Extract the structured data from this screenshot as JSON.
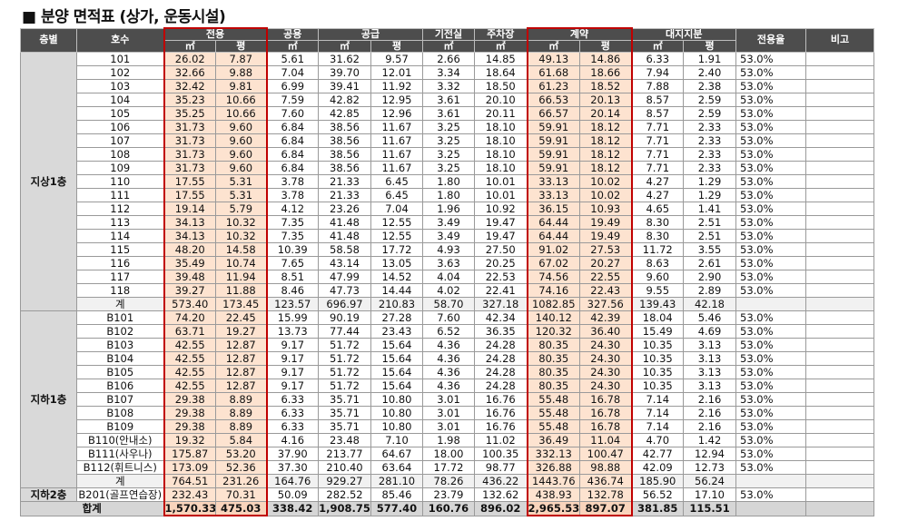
{
  "title": "■ 분양 면적표 (상가, 운동시설)",
  "table": {
    "head1": [
      "층별",
      "호수",
      "전용",
      "공용",
      "공급",
      "기전실",
      "주차장",
      "계약",
      "대지지분",
      "전용율",
      "비고"
    ],
    "head2": [
      "㎡",
      "평",
      "㎡",
      "㎡",
      "평",
      "㎡",
      "㎡",
      "㎡",
      "평",
      "㎡",
      "평"
    ],
    "sections": [
      {
        "floor": "지상1층",
        "rows": [
          [
            "101",
            "26.02",
            "7.87",
            "5.61",
            "31.62",
            "9.57",
            "2.66",
            "14.85",
            "49.13",
            "14.86",
            "6.33",
            "1.91",
            "53.0%"
          ],
          [
            "102",
            "32.66",
            "9.88",
            "7.04",
            "39.70",
            "12.01",
            "3.34",
            "18.64",
            "61.68",
            "18.66",
            "7.94",
            "2.40",
            "53.0%"
          ],
          [
            "103",
            "32.42",
            "9.81",
            "6.99",
            "39.41",
            "11.92",
            "3.32",
            "18.50",
            "61.23",
            "18.52",
            "7.88",
            "2.38",
            "53.0%"
          ],
          [
            "104",
            "35.23",
            "10.66",
            "7.59",
            "42.82",
            "12.95",
            "3.61",
            "20.10",
            "66.53",
            "20.13",
            "8.57",
            "2.59",
            "53.0%"
          ],
          [
            "105",
            "35.25",
            "10.66",
            "7.60",
            "42.85",
            "12.96",
            "3.61",
            "20.11",
            "66.57",
            "20.14",
            "8.57",
            "2.59",
            "53.0%"
          ],
          [
            "106",
            "31.73",
            "9.60",
            "6.84",
            "38.56",
            "11.67",
            "3.25",
            "18.10",
            "59.91",
            "18.12",
            "7.71",
            "2.33",
            "53.0%"
          ],
          [
            "107",
            "31.73",
            "9.60",
            "6.84",
            "38.56",
            "11.67",
            "3.25",
            "18.10",
            "59.91",
            "18.12",
            "7.71",
            "2.33",
            "53.0%"
          ],
          [
            "108",
            "31.73",
            "9.60",
            "6.84",
            "38.56",
            "11.67",
            "3.25",
            "18.10",
            "59.91",
            "18.12",
            "7.71",
            "2.33",
            "53.0%"
          ],
          [
            "109",
            "31.73",
            "9.60",
            "6.84",
            "38.56",
            "11.67",
            "3.25",
            "18.10",
            "59.91",
            "18.12",
            "7.71",
            "2.33",
            "53.0%"
          ],
          [
            "110",
            "17.55",
            "5.31",
            "3.78",
            "21.33",
            "6.45",
            "1.80",
            "10.01",
            "33.13",
            "10.02",
            "4.27",
            "1.29",
            "53.0%"
          ],
          [
            "111",
            "17.55",
            "5.31",
            "3.78",
            "21.33",
            "6.45",
            "1.80",
            "10.01",
            "33.13",
            "10.02",
            "4.27",
            "1.29",
            "53.0%"
          ],
          [
            "112",
            "19.14",
            "5.79",
            "4.12",
            "23.26",
            "7.04",
            "1.96",
            "10.92",
            "36.15",
            "10.93",
            "4.65",
            "1.41",
            "53.0%"
          ],
          [
            "113",
            "34.13",
            "10.32",
            "7.35",
            "41.48",
            "12.55",
            "3.49",
            "19.47",
            "64.44",
            "19.49",
            "8.30",
            "2.51",
            "53.0%"
          ],
          [
            "114",
            "34.13",
            "10.32",
            "7.35",
            "41.48",
            "12.55",
            "3.49",
            "19.47",
            "64.44",
            "19.49",
            "8.30",
            "2.51",
            "53.0%"
          ],
          [
            "115",
            "48.20",
            "14.58",
            "10.39",
            "58.58",
            "17.72",
            "4.93",
            "27.50",
            "91.02",
            "27.53",
            "11.72",
            "3.55",
            "53.0%"
          ],
          [
            "116",
            "35.49",
            "10.74",
            "7.65",
            "43.14",
            "13.05",
            "3.63",
            "20.25",
            "67.02",
            "20.27",
            "8.63",
            "2.61",
            "53.0%"
          ],
          [
            "117",
            "39.48",
            "11.94",
            "8.51",
            "47.99",
            "14.52",
            "4.04",
            "22.53",
            "74.56",
            "22.55",
            "9.60",
            "2.90",
            "53.0%"
          ],
          [
            "118",
            "39.27",
            "11.88",
            "8.46",
            "47.73",
            "14.44",
            "4.02",
            "22.41",
            "74.16",
            "22.43",
            "9.55",
            "2.89",
            "53.0%"
          ]
        ],
        "subtotal": [
          "계",
          "573.40",
          "173.45",
          "123.57",
          "696.97",
          "210.83",
          "58.70",
          "327.18",
          "1082.85",
          "327.56",
          "139.43",
          "42.18"
        ]
      },
      {
        "floor": "지하1층",
        "rows": [
          [
            "B101",
            "74.20",
            "22.45",
            "15.99",
            "90.19",
            "27.28",
            "7.60",
            "42.34",
            "140.12",
            "42.39",
            "18.04",
            "5.46",
            "53.0%"
          ],
          [
            "B102",
            "63.71",
            "19.27",
            "13.73",
            "77.44",
            "23.43",
            "6.52",
            "36.35",
            "120.32",
            "36.40",
            "15.49",
            "4.69",
            "53.0%"
          ],
          [
            "B103",
            "42.55",
            "12.87",
            "9.17",
            "51.72",
            "15.64",
            "4.36",
            "24.28",
            "80.35",
            "24.30",
            "10.35",
            "3.13",
            "53.0%"
          ],
          [
            "B104",
            "42.55",
            "12.87",
            "9.17",
            "51.72",
            "15.64",
            "4.36",
            "24.28",
            "80.35",
            "24.30",
            "10.35",
            "3.13",
            "53.0%"
          ],
          [
            "B105",
            "42.55",
            "12.87",
            "9.17",
            "51.72",
            "15.64",
            "4.36",
            "24.28",
            "80.35",
            "24.30",
            "10.35",
            "3.13",
            "53.0%"
          ],
          [
            "B106",
            "42.55",
            "12.87",
            "9.17",
            "51.72",
            "15.64",
            "4.36",
            "24.28",
            "80.35",
            "24.30",
            "10.35",
            "3.13",
            "53.0%"
          ],
          [
            "B107",
            "29.38",
            "8.89",
            "6.33",
            "35.71",
            "10.80",
            "3.01",
            "16.76",
            "55.48",
            "16.78",
            "7.14",
            "2.16",
            "53.0%"
          ],
          [
            "B108",
            "29.38",
            "8.89",
            "6.33",
            "35.71",
            "10.80",
            "3.01",
            "16.76",
            "55.48",
            "16.78",
            "7.14",
            "2.16",
            "53.0%"
          ],
          [
            "B109",
            "29.38",
            "8.89",
            "6.33",
            "35.71",
            "10.80",
            "3.01",
            "16.76",
            "55.48",
            "16.78",
            "7.14",
            "2.16",
            "53.0%"
          ],
          [
            "B110(안내소)",
            "19.32",
            "5.84",
            "4.16",
            "23.48",
            "7.10",
            "1.98",
            "11.02",
            "36.49",
            "11.04",
            "4.70",
            "1.42",
            "53.0%"
          ],
          [
            "B111(사우나)",
            "175.87",
            "53.20",
            "37.90",
            "213.77",
            "64.67",
            "18.00",
            "100.35",
            "332.13",
            "100.47",
            "42.77",
            "12.94",
            "53.0%"
          ],
          [
            "B112(휘트니스)",
            "173.09",
            "52.36",
            "37.30",
            "210.40",
            "63.64",
            "17.72",
            "98.77",
            "326.88",
            "98.88",
            "42.09",
            "12.73",
            "53.0%"
          ]
        ],
        "subtotal": [
          "계",
          "764.51",
          "231.26",
          "164.76",
          "929.27",
          "281.10",
          "78.26",
          "436.22",
          "1443.76",
          "436.74",
          "185.90",
          "56.24"
        ]
      },
      {
        "floor": "지하2층",
        "rows": [
          [
            "B201(골프연습장)",
            "232.43",
            "70.31",
            "50.09",
            "282.52",
            "85.46",
            "23.79",
            "132.62",
            "438.93",
            "132.78",
            "56.52",
            "17.10",
            "53.0%"
          ]
        ]
      }
    ],
    "total": [
      "합계",
      "1,570.33",
      "475.03",
      "338.42",
      "1,908.75",
      "577.40",
      "160.76",
      "896.02",
      "2,965.53",
      "897.07",
      "381.85",
      "115.51"
    ]
  }
}
